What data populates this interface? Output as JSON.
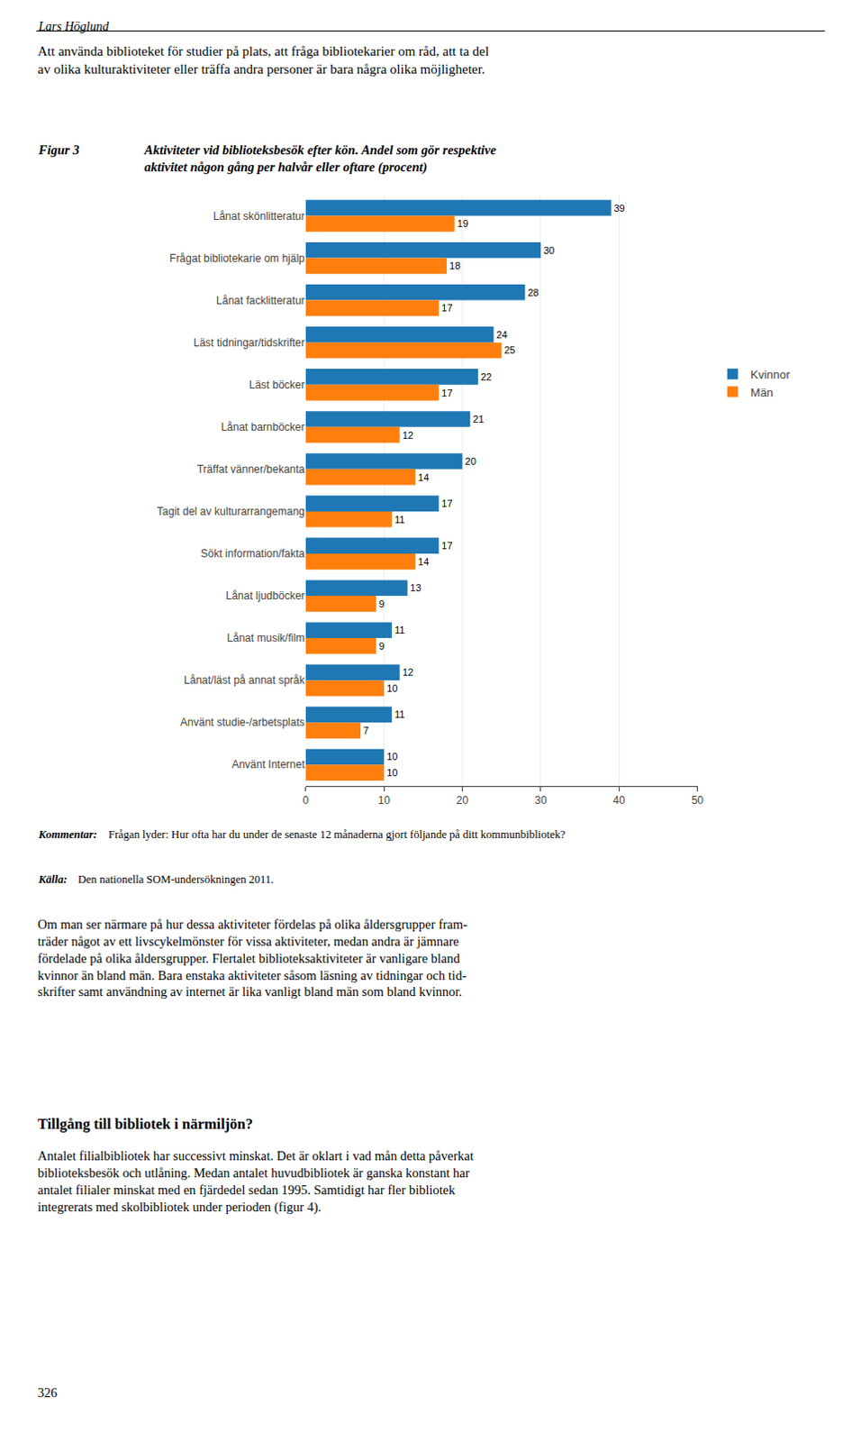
{
  "chart_data": {
    "type": "bar",
    "orientation": "horizontal",
    "title": "Aktiviteter vid biblioteksbesök efter kön. Andel som gör respektive\naktivitet någon gång per halvår eller oftare (procent)",
    "categories": [
      "Lånat skönlitteratur",
      "Frågat bibliotekarie om hjälp",
      "Lånat facklitteratur",
      "Läst tidningar/tidskrifter",
      "Läst böcker",
      "Lånat barnböcker",
      "Träffat vänner/bekanta",
      "Tagit del av kulturarrangemang",
      "Sökt information/fakta",
      "Lånat ljudböcker",
      "Lånat musik/film",
      "Lånat/läst på annat språk",
      "Använt studie-/arbetsplats",
      "Använt Internet"
    ],
    "series": [
      {
        "name": "Kvinnor",
        "values": [
          39,
          30,
          28,
          24,
          22,
          21,
          20,
          17,
          17,
          13,
          11,
          12,
          11,
          10
        ]
      },
      {
        "name": "Män",
        "values": [
          19,
          18,
          17,
          25,
          17,
          12,
          14,
          11,
          14,
          9,
          9,
          10,
          7,
          10
        ]
      }
    ],
    "xlim": [
      0,
      50
    ],
    "xticks": [
      0,
      10,
      20,
      30,
      40,
      50
    ],
    "grid": true,
    "legend": "right",
    "data_labels": true,
    "annotations": [
      "Lars Höglund",
      "Att använda biblioteket för studier på plats, att fråga bibliotekarier om råd, att ta del\nav olika kulturaktiviteter eller träffa andra personer är bara några olika möjligheter.",
      "Figur 3",
      "Kommentar:",
      "Frågan lyder: Hur ofta har du under de senaste 12 månaderna gjort följande på ditt kommunbibliotek?",
      "Källa:",
      "Den nationella SOM-undersökningen 2011.",
      "Om man ser närmare på hur dessa aktiviteter fördelas på olika åldersgrupper fram-\nträder något av ett livscykelmönster för vissa aktiviteter, medan andra är jämnare\nfördelade på olika åldersgrupper. Flertalet biblioteksaktiviteter är vanligare bland\nkvinnor än bland män. Bara enstaka aktiviteter såsom läsning av tidningar och tid-\nskrifter samt användning av internet är lika vanligt bland män som bland kvinnor.",
      "Tillgång till bibliotek i närmiljön?",
      "Antalet filialbibliotek har successivt minskat. Det är oklart i vad mån detta påverkat\nbiblioteksbesök och utlåning. Medan antalet huvudbibliotek är ganska konstant har\nantalet filialer minskat med en fjärdedel sedan 1995. Samtidigt har fler bibliotek\nintegrerats med skolbibliotek under perioden (figur 4).",
      "326"
    ]
  }
}
